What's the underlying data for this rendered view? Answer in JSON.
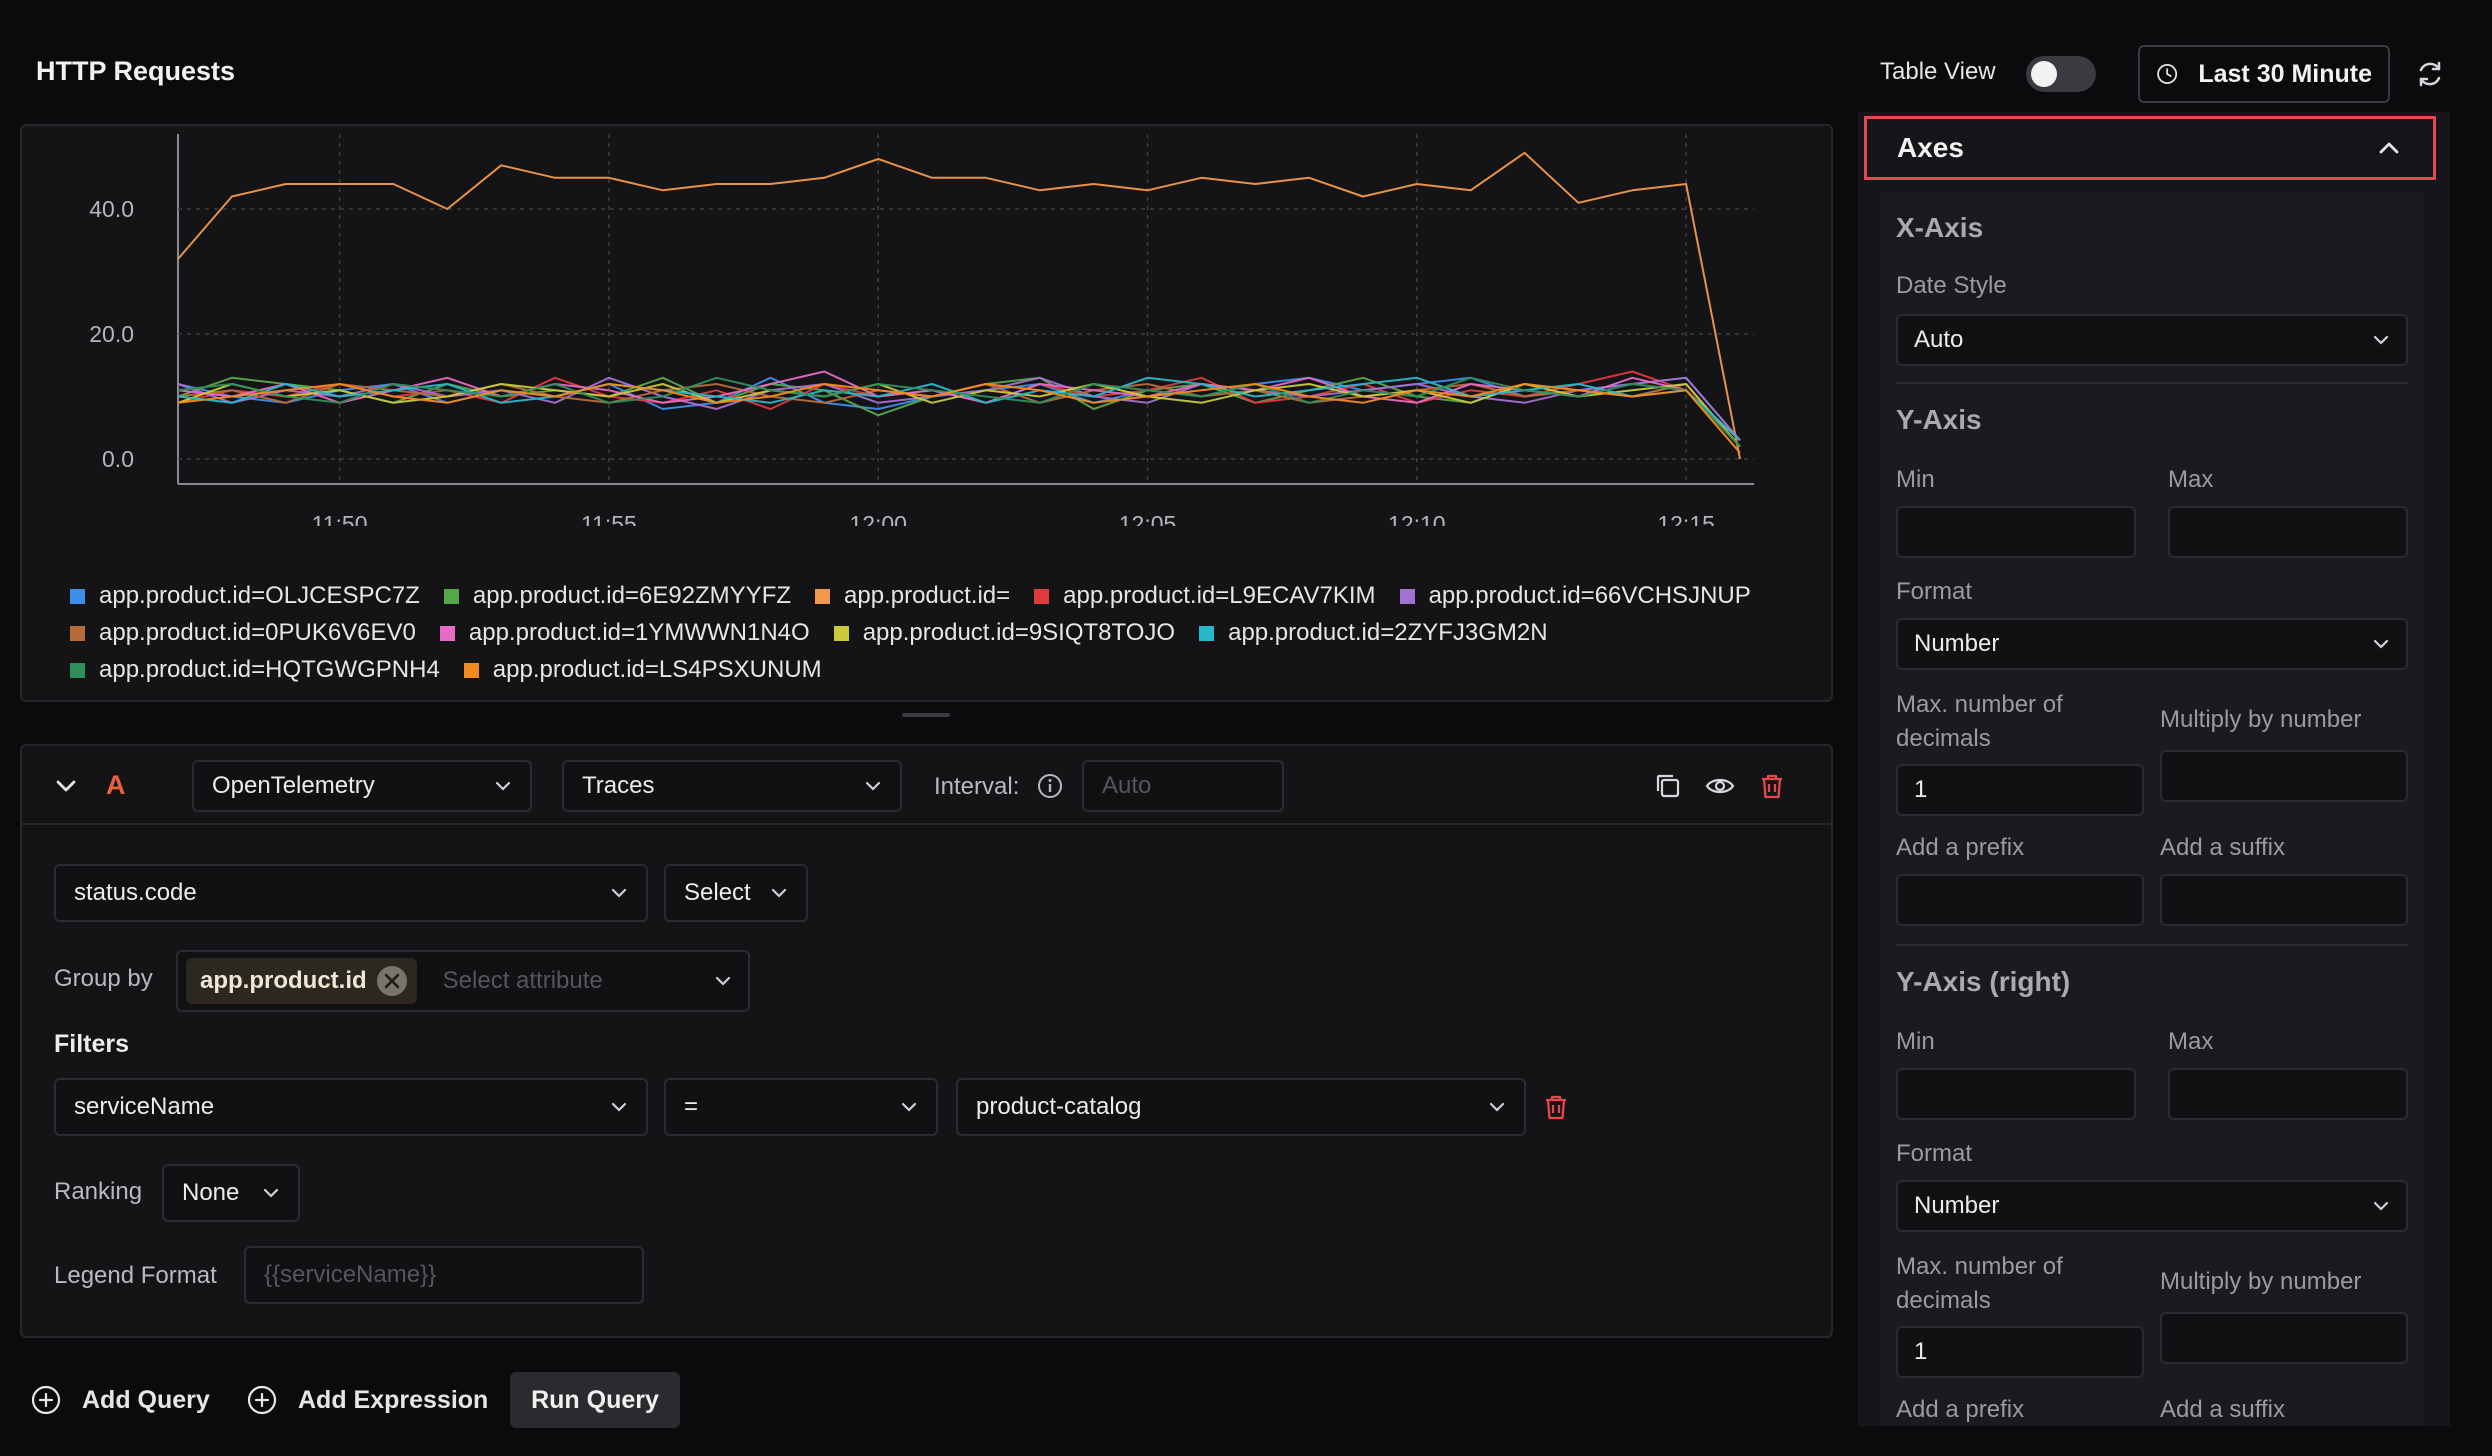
{
  "header": {
    "title": "HTTP Requests",
    "table_view_label": "Table View",
    "table_view_on": false,
    "time_range": "Last 30 Minute",
    "refresh_icon": "refresh-icon",
    "clock_icon": "clock-icon"
  },
  "chart_data": {
    "type": "line",
    "x": [
      "11:47",
      "11:48",
      "11:49",
      "11:50",
      "11:51",
      "11:52",
      "11:53",
      "11:54",
      "11:55",
      "11:56",
      "11:57",
      "11:58",
      "11:59",
      "12:00",
      "12:01",
      "12:02",
      "12:03",
      "12:04",
      "12:05",
      "12:06",
      "12:07",
      "12:08",
      "12:09",
      "12:10",
      "12:11",
      "12:12",
      "12:13",
      "12:14",
      "12:15",
      "12:16"
    ],
    "x_ticks": [
      "11:50",
      "11:55",
      "12:00",
      "12:05",
      "12:10",
      "12:15"
    ],
    "y_ticks": [
      "0.0",
      "20.0",
      "40.0"
    ],
    "ylim": [
      -4,
      52
    ],
    "grid": true,
    "legend_position": "bottom",
    "series": [
      {
        "name": "app.product.id=OLJCESPC7Z",
        "color": "#3d8eea",
        "values": [
          12,
          10,
          9,
          11,
          12,
          9,
          11,
          10,
          12,
          8,
          9,
          13,
          9,
          8,
          10,
          11,
          12,
          9,
          11,
          10,
          12,
          13,
          11,
          12,
          13,
          10,
          11,
          12,
          13,
          3
        ]
      },
      {
        "name": "app.product.id=6E92ZMYYFZ",
        "color": "#56a64b",
        "values": [
          10,
          13,
          12,
          11,
          9,
          12,
          10,
          11,
          10,
          13,
          9,
          12,
          11,
          7,
          10,
          12,
          13,
          8,
          11,
          12,
          9,
          11,
          13,
          10,
          9,
          12,
          11,
          10,
          12,
          2
        ]
      },
      {
        "name": "app.product.id=",
        "color": "#f2994a",
        "values": [
          32,
          42,
          44,
          44,
          44,
          40,
          47,
          45,
          45,
          43,
          44,
          44,
          45,
          48,
          45,
          45,
          43,
          44,
          43,
          45,
          44,
          45,
          42,
          44,
          43,
          49,
          41,
          43,
          44,
          0
        ]
      },
      {
        "name": "app.product.id=L9ECAV7KIM",
        "color": "#e0393e",
        "values": [
          9,
          11,
          10,
          12,
          10,
          11,
          9,
          13,
          10,
          9,
          11,
          8,
          12,
          10,
          11,
          9,
          12,
          10,
          11,
          13,
          9,
          10,
          12,
          9,
          11,
          10,
          12,
          14,
          11,
          2
        ]
      },
      {
        "name": "app.product.id=66VCHSJNUP",
        "color": "#a371d1",
        "values": [
          12,
          9,
          11,
          10,
          12,
          10,
          11,
          9,
          13,
          10,
          8,
          11,
          12,
          9,
          10,
          11,
          13,
          10,
          9,
          12,
          11,
          10,
          11,
          12,
          10,
          9,
          11,
          12,
          13,
          3
        ]
      },
      {
        "name": "app.product.id=0PUK6V6EV0",
        "color": "#b56c3a",
        "values": [
          10,
          11,
          9,
          12,
          11,
          10,
          12,
          10,
          9,
          11,
          12,
          10,
          9,
          11,
          10,
          12,
          9,
          11,
          12,
          10,
          11,
          9,
          10,
          11,
          12,
          10,
          11,
          10,
          12,
          2
        ]
      },
      {
        "name": "app.product.id=1YMWWN1N4O",
        "color": "#e66bc4",
        "values": [
          11,
          10,
          12,
          9,
          11,
          13,
          10,
          12,
          11,
          9,
          10,
          12,
          14,
          10,
          11,
          9,
          12,
          11,
          10,
          12,
          11,
          13,
          10,
          9,
          12,
          11,
          10,
          13,
          11,
          3
        ]
      },
      {
        "name": "app.product.id=9SIQT8TOJO",
        "color": "#c9c93a",
        "values": [
          9,
          12,
          10,
          11,
          9,
          10,
          12,
          11,
          10,
          12,
          9,
          11,
          10,
          12,
          9,
          11,
          10,
          12,
          10,
          9,
          11,
          12,
          10,
          11,
          9,
          12,
          10,
          11,
          12,
          2
        ]
      },
      {
        "name": "app.product.id=2ZYFJ3GM2N",
        "color": "#27b8c9",
        "values": [
          10,
          9,
          12,
          10,
          11,
          12,
          9,
          10,
          12,
          11,
          10,
          9,
          11,
          10,
          12,
          9,
          11,
          10,
          13,
          12,
          10,
          11,
          12,
          13,
          10,
          11,
          12,
          10,
          11,
          3
        ]
      },
      {
        "name": "app.product.id=HQTGWGPNH4",
        "color": "#2f8f5b",
        "values": [
          11,
          12,
          10,
          9,
          12,
          11,
          10,
          12,
          9,
          10,
          13,
          11,
          10,
          12,
          11,
          10,
          9,
          12,
          11,
          10,
          12,
          9,
          11,
          10,
          13,
          11,
          10,
          12,
          11,
          2
        ]
      },
      {
        "name": "app.product.id=LS4PSXUNUM",
        "color": "#f28a1e",
        "values": [
          9,
          10,
          11,
          12,
          10,
          9,
          11,
          10,
          12,
          11,
          9,
          10,
          12,
          11,
          10,
          12,
          11,
          9,
          10,
          11,
          12,
          10,
          9,
          11,
          10,
          12,
          11,
          10,
          11,
          1
        ]
      }
    ]
  },
  "query": {
    "letter": "A",
    "datasource": "OpenTelemetry",
    "signal": "Traces",
    "interval_label": "Interval:",
    "interval_placeholder": "Auto",
    "aggregate_attribute": "status.code",
    "aggregate_op": "Select",
    "group_by_label": "Group by",
    "group_by_tag": "app.product.id",
    "group_by_placeholder": "Select attribute",
    "filters_label": "Filters",
    "filter_key": "serviceName",
    "filter_op": "=",
    "filter_value": "product-catalog",
    "ranking_label": "Ranking",
    "ranking_value": "None",
    "legend_format_label": "Legend Format",
    "legend_format_placeholder": "{{serviceName}}"
  },
  "footer": {
    "add_query": "Add Query",
    "add_expression": "Add Expression",
    "run_query": "Run Query"
  },
  "axes_panel": {
    "title": "Axes",
    "x_axis": {
      "title": "X-Axis",
      "date_style_label": "Date Style",
      "date_style_value": "Auto"
    },
    "y_axis": {
      "title": "Y-Axis",
      "min_label": "Min",
      "max_label": "Max",
      "format_label": "Format",
      "format_value": "Number",
      "decimals_label_1": "Max. number of",
      "decimals_label_2": "decimals",
      "decimals_value": "1",
      "multiply_label": "Multiply by number",
      "prefix_label": "Add a prefix",
      "suffix_label": "Add a suffix"
    },
    "y_axis_right": {
      "title": "Y-Axis (right)",
      "min_label": "Min",
      "max_label": "Max",
      "format_label": "Format",
      "format_value": "Number",
      "decimals_label_1": "Max. number of",
      "decimals_label_2": "decimals",
      "decimals_value": "1",
      "multiply_label": "Multiply by number",
      "prefix_label": "Add a prefix",
      "suffix_label": "Add a suffix"
    }
  }
}
